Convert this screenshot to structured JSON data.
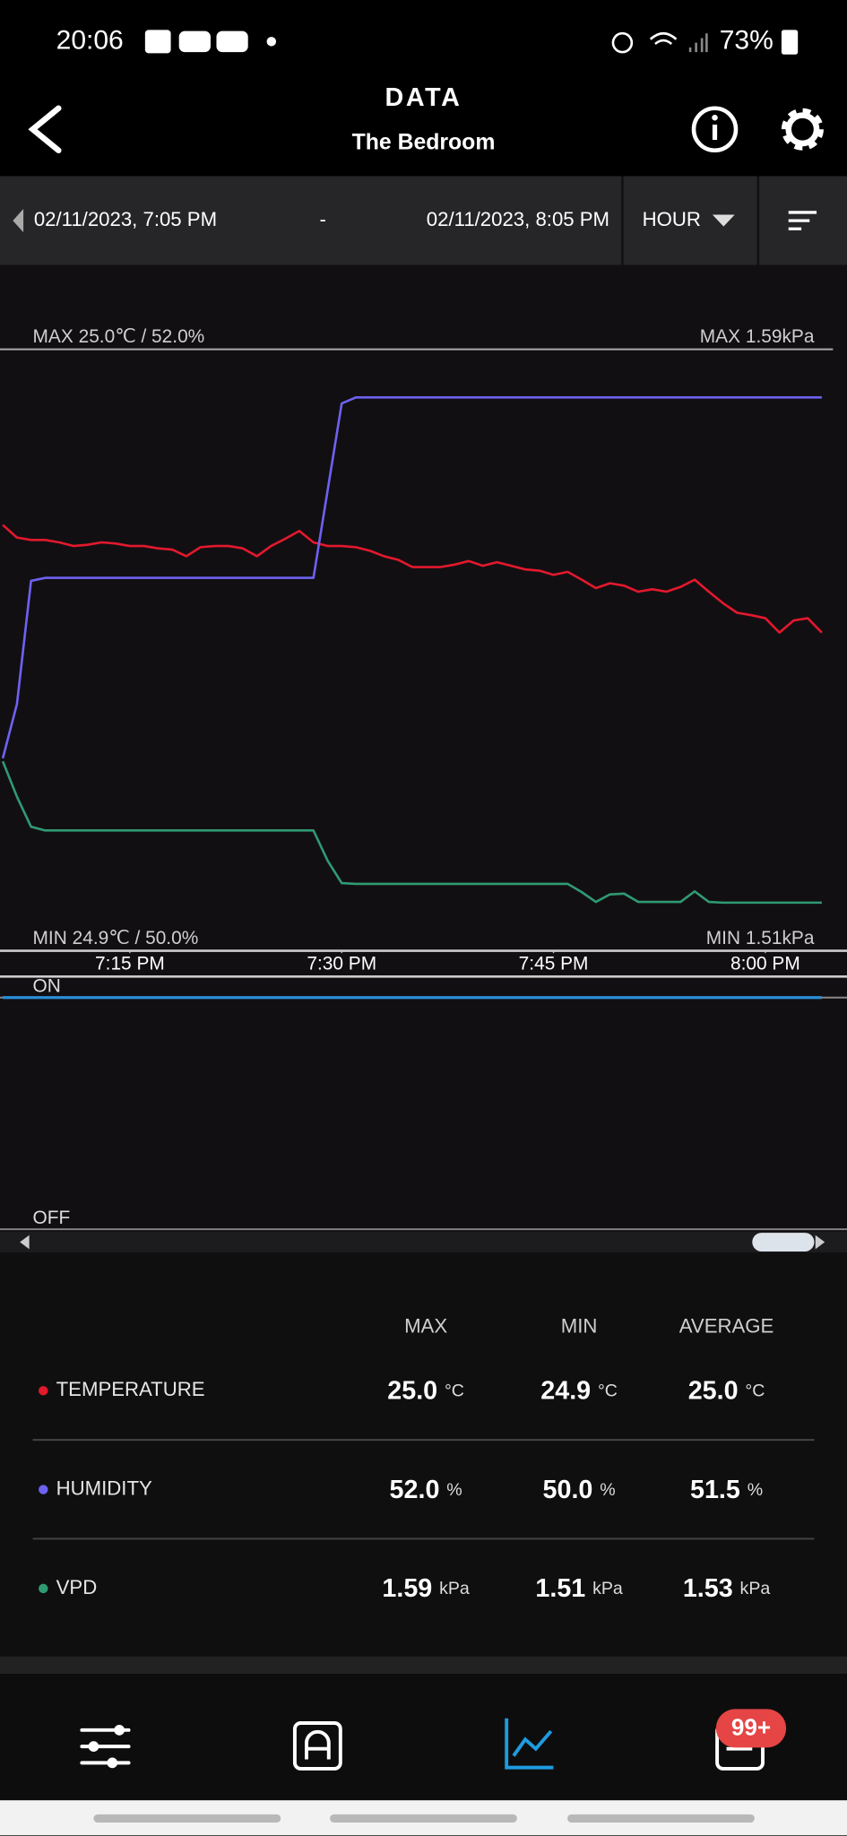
{
  "status_bar": {
    "time": "20:06",
    "battery": "73%"
  },
  "header": {
    "title": "DATA",
    "subtitle": "The Bedroom"
  },
  "range": {
    "start": "02/11/2023, 7:05 PM",
    "separator": "-",
    "end": "02/11/2023, 8:05 PM",
    "interval": "HOUR"
  },
  "chart_data": [
    {
      "type": "line",
      "annotations": [
        "MAX 25.0℃ / 52.0%",
        "MAX 1.59kPa",
        "MIN 24.9℃ / 50.0%",
        "MIN 1.51kPa"
      ],
      "x": [
        "7:06 PM",
        "7:07 PM",
        "7:08 PM",
        "7:09 PM",
        "7:10 PM",
        "7:11 PM",
        "7:12 PM",
        "7:13 PM",
        "7:14 PM",
        "7:15 PM",
        "7:16 PM",
        "7:17 PM",
        "7:18 PM",
        "7:19 PM",
        "7:20 PM",
        "7:21 PM",
        "7:22 PM",
        "7:23 PM",
        "7:24 PM",
        "7:25 PM",
        "7:26 PM",
        "7:27 PM",
        "7:28 PM",
        "7:29 PM",
        "7:30 PM",
        "7:31 PM",
        "7:32 PM",
        "7:33 PM",
        "7:34 PM",
        "7:35 PM",
        "7:36 PM",
        "7:37 PM",
        "7:38 PM",
        "7:39 PM",
        "7:40 PM",
        "7:41 PM",
        "7:42 PM",
        "7:43 PM",
        "7:44 PM",
        "7:45 PM",
        "7:46 PM",
        "7:47 PM",
        "7:48 PM",
        "7:49 PM",
        "7:50 PM",
        "7:51 PM",
        "7:52 PM",
        "7:53 PM",
        "7:54 PM",
        "7:55 PM",
        "7:56 PM",
        "7:57 PM",
        "7:58 PM",
        "7:59 PM",
        "8:00 PM",
        "8:01 PM",
        "8:02 PM",
        "8:03 PM",
        "8:04 PM"
      ],
      "xticks": [
        "7:15 PM",
        "7:30 PM",
        "7:45 PM",
        "8:00 PM"
      ],
      "series": [
        {
          "name": "TEMPERATURE",
          "color": "#e3192c",
          "ylim": [
            24.9,
            25.0
          ],
          "values": [
            24.9708,
            24.9687,
            24.9683,
            24.9683,
            24.9679,
            24.9673,
            24.9675,
            24.9679,
            24.9677,
            24.9673,
            24.9673,
            24.9669,
            24.9667,
            24.9656,
            24.9671,
            24.9673,
            24.9673,
            24.9669,
            24.9656,
            24.9673,
            24.9685,
            24.9698,
            24.9679,
            24.9673,
            24.9673,
            24.9671,
            24.9665,
            24.9656,
            24.965,
            24.9638,
            24.9638,
            24.9638,
            24.9642,
            24.9648,
            24.964,
            24.9646,
            24.964,
            24.9634,
            24.9632,
            24.9625,
            24.963,
            24.9617,
            24.9603,
            24.9611,
            24.9607,
            24.9597,
            24.9601,
            24.9597,
            24.9605,
            24.9617,
            24.9597,
            24.9578,
            24.9562,
            24.9558,
            24.9553,
            24.9529,
            24.9549,
            24.9553,
            24.9529
          ]
        },
        {
          "name": "HUMIDITY",
          "color": "#6d62f0",
          "ylim": [
            50.0,
            52.0
          ],
          "values": [
            50.64,
            50.82,
            51.23,
            51.24,
            51.24,
            51.24,
            51.24,
            51.24,
            51.24,
            51.24,
            51.24,
            51.24,
            51.24,
            51.24,
            51.24,
            51.24,
            51.24,
            51.24,
            51.24,
            51.24,
            51.24,
            51.24,
            51.24,
            51.53,
            51.82,
            51.84,
            51.84,
            51.84,
            51.84,
            51.84,
            51.84,
            51.84,
            51.84,
            51.84,
            51.84,
            51.84,
            51.84,
            51.84,
            51.84,
            51.84,
            51.84,
            51.84,
            51.84,
            51.84,
            51.84,
            51.84,
            51.84,
            51.84,
            51.84,
            51.84,
            51.84,
            51.84,
            51.84,
            51.84,
            51.84,
            51.84,
            51.84,
            51.84,
            51.84
          ]
        },
        {
          "name": "VPD",
          "color": "#2f9a72",
          "ylim": [
            1.51,
            1.59
          ],
          "values": [
            1.5352,
            1.5305,
            1.5265,
            1.526,
            1.526,
            1.526,
            1.526,
            1.526,
            1.526,
            1.526,
            1.526,
            1.526,
            1.526,
            1.526,
            1.526,
            1.526,
            1.526,
            1.526,
            1.526,
            1.526,
            1.526,
            1.526,
            1.526,
            1.522,
            1.519,
            1.5189,
            1.5189,
            1.5189,
            1.5189,
            1.5189,
            1.5189,
            1.5189,
            1.5189,
            1.5189,
            1.5189,
            1.5189,
            1.5189,
            1.5189,
            1.5189,
            1.5189,
            1.5189,
            1.5178,
            1.5165,
            1.5175,
            1.5176,
            1.5165,
            1.5165,
            1.5165,
            1.5165,
            1.5179,
            1.5165,
            1.5164,
            1.5164,
            1.5164,
            1.5164,
            1.5164,
            1.5164,
            1.5164,
            1.5164
          ]
        }
      ]
    },
    {
      "type": "line",
      "x": [
        "7:06 PM",
        "8:04 PM"
      ],
      "ylim": [
        0,
        1
      ],
      "yticks": [
        {
          "value": 1,
          "label": "ON"
        },
        {
          "value": 0,
          "label": "OFF"
        }
      ],
      "series": [
        {
          "color": "#2a8fd8",
          "values": [
            1,
            1
          ]
        }
      ]
    }
  ],
  "table": {
    "columns": [
      "MAX",
      "MIN",
      "AVERAGE"
    ],
    "rows": [
      {
        "name": "TEMPERATURE",
        "color": "#e3192c",
        "cells": [
          {
            "value": "25.0",
            "unit": "°C"
          },
          {
            "value": "24.9",
            "unit": "°C"
          },
          {
            "value": "25.0",
            "unit": "°C"
          }
        ]
      },
      {
        "name": "HUMIDITY",
        "color": "#6d62f0",
        "cells": [
          {
            "value": "52.0",
            "unit": "%"
          },
          {
            "value": "50.0",
            "unit": "%"
          },
          {
            "value": "51.5",
            "unit": "%"
          }
        ]
      },
      {
        "name": "VPD",
        "color": "#2f9a72",
        "cells": [
          {
            "value": "1.59",
            "unit": "kPa"
          },
          {
            "value": "1.51",
            "unit": "kPa"
          },
          {
            "value": "1.53",
            "unit": "kPa"
          }
        ]
      }
    ]
  },
  "nav": {
    "badge": "99+"
  }
}
